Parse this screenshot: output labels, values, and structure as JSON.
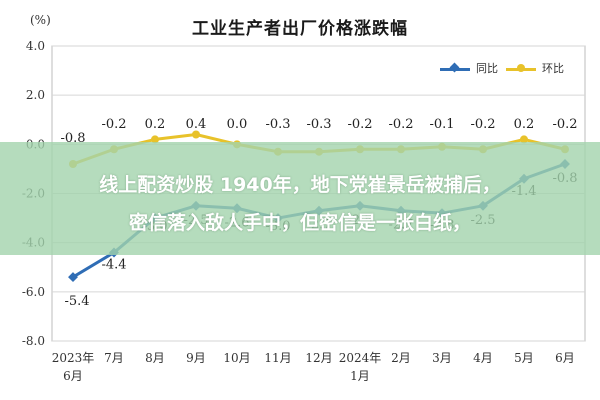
{
  "chart_data": {
    "type": "line",
    "title": "工业生产者出厂价格涨跌幅",
    "ylabel": "(%)",
    "xlabel": "",
    "ylim": [
      -8.0,
      4.0
    ],
    "yticks": [
      "4.0",
      "2.0",
      "0.0",
      "-2.0",
      "-4.0",
      "-6.0",
      "-8.0"
    ],
    "categories": [
      "2023年\n6月",
      "7月",
      "8月",
      "9月",
      "10月",
      "11月",
      "12月",
      "2024年\n1月",
      "2月",
      "3月",
      "4月",
      "5月",
      "6月"
    ],
    "series": [
      {
        "name": "同比",
        "color": "#2f6db5",
        "values": [
          -5.4,
          -4.4,
          -3.0,
          -2.5,
          -2.6,
          -3.0,
          -2.7,
          -2.5,
          -2.7,
          -2.8,
          -2.5,
          -1.4,
          -0.8
        ],
        "labels": [
          "-5.4",
          "-4.4",
          "-3.0",
          "-2.5",
          "-2.6",
          "-3.0",
          "-2.7",
          "-2.5",
          "-2.7",
          "-2.8",
          "-2.5",
          "-1.4",
          "-0.8"
        ]
      },
      {
        "name": "环比",
        "color": "#e8c22a",
        "values": [
          -0.8,
          -0.2,
          0.2,
          0.4,
          0.0,
          -0.3,
          -0.3,
          -0.2,
          -0.2,
          -0.1,
          -0.2,
          0.2,
          -0.2
        ],
        "labels": [
          "-0.8",
          "-0.2",
          "0.2",
          "0.4",
          "0.0",
          "-0.3",
          "-0.3",
          "-0.2",
          "-0.2",
          "-0.1",
          "-0.2",
          "0.2",
          "-0.2"
        ]
      }
    ],
    "grid": true,
    "legend_position": "top-right"
  },
  "overlay": {
    "line1": "线上配资炒股 1940年，地下党崔景岳被捕后，",
    "line2": "密信落入敌人手中，但密信是一张白纸，"
  }
}
